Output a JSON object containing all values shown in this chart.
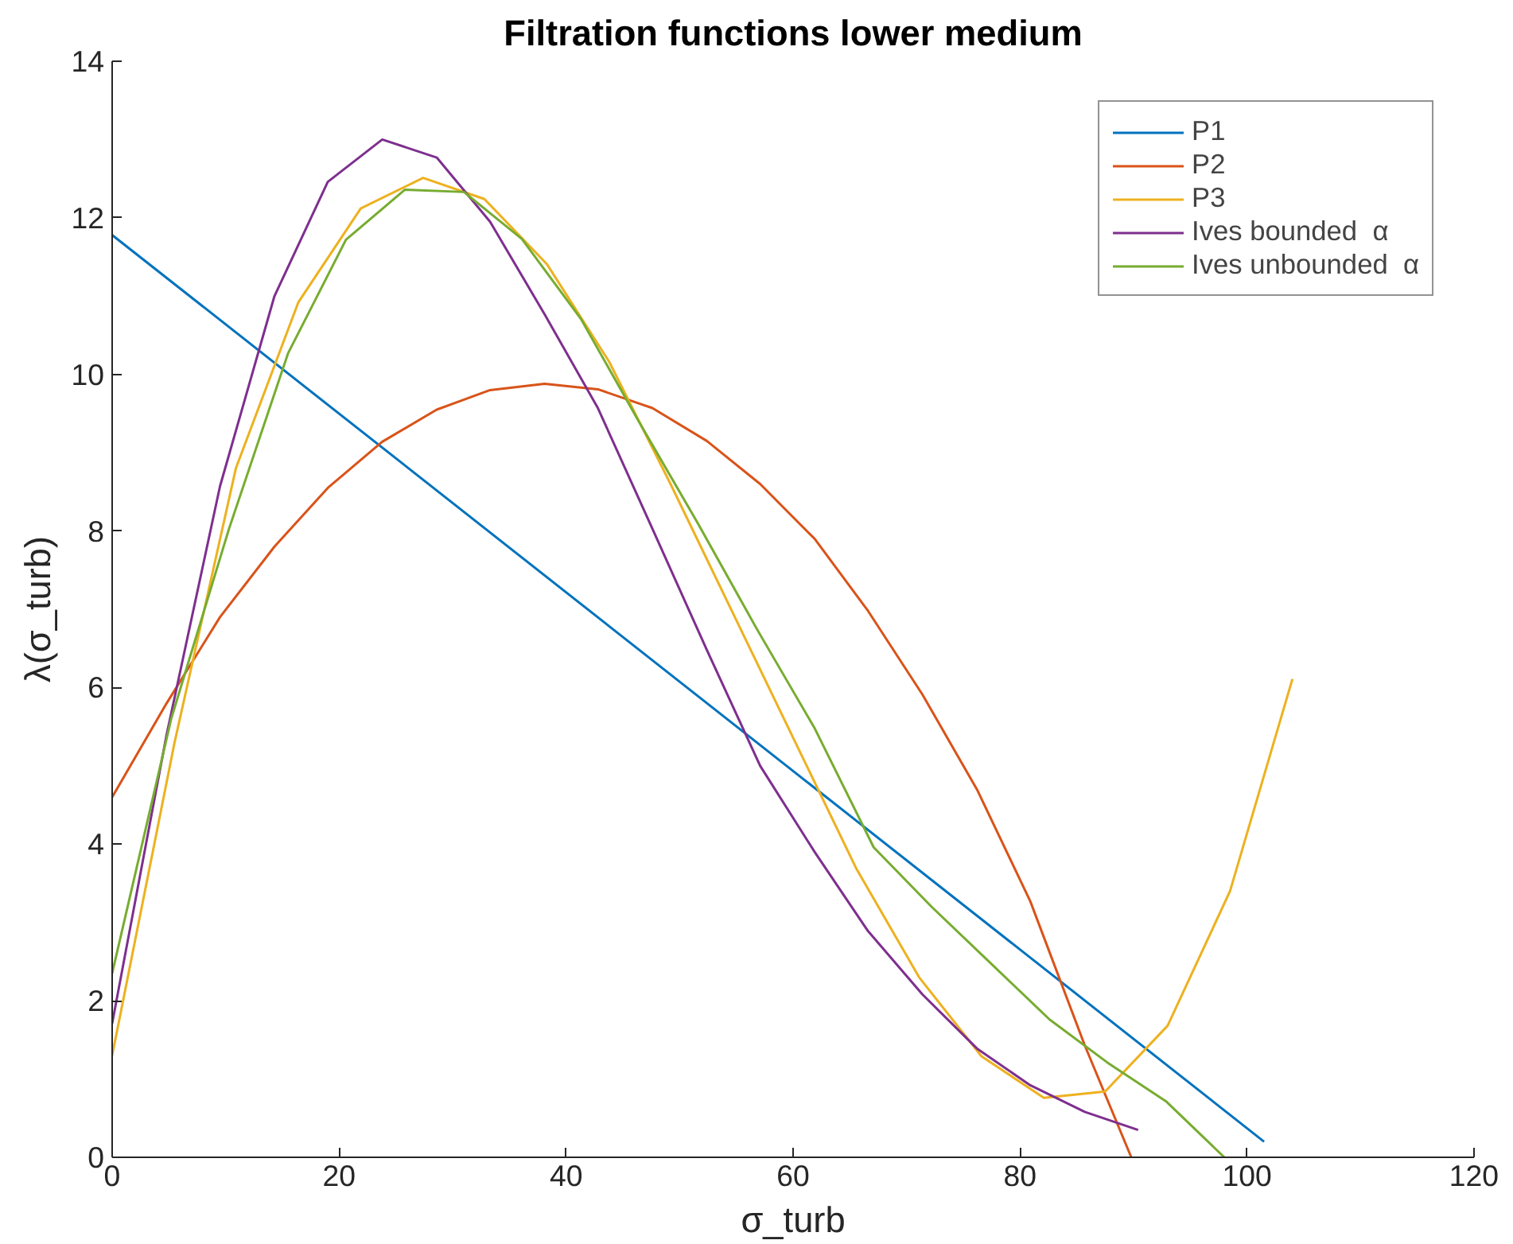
{
  "chart_data": {
    "type": "line",
    "title": "Filtration functions lower medium",
    "xlabel": "σ_turb",
    "ylabel": "λ(σ_turb)",
    "xlim": [
      0,
      120
    ],
    "xticks": [
      0,
      20,
      40,
      60,
      80,
      100,
      120
    ],
    "ylim": [
      0,
      14
    ],
    "yticks": [
      0,
      2,
      4,
      6,
      8,
      10,
      12,
      14
    ],
    "grid": false,
    "legend": "top right",
    "marker": "none",
    "line_style": "solid",
    "series": [
      {
        "name": "P1",
        "color": "#0072bd",
        "x": [
          0,
          101.5
        ],
        "values": [
          11.78,
          0.2
        ]
      },
      {
        "name": "P2",
        "color": "#d95319",
        "x": [
          0,
          4.8,
          9.5,
          14.3,
          19.0,
          23.8,
          28.6,
          33.3,
          38.1,
          42.8,
          47.6,
          52.4,
          57.1,
          61.9,
          66.6,
          71.4,
          76.2,
          80.9,
          85.7,
          89.8
        ],
        "values": [
          4.6,
          5.8,
          6.9,
          7.8,
          8.55,
          9.14,
          9.55,
          9.8,
          9.88,
          9.81,
          9.57,
          9.15,
          8.6,
          7.9,
          6.98,
          5.91,
          4.7,
          3.27,
          1.43,
          0
        ]
      },
      {
        "name": "P3",
        "color": "#edb120",
        "x": [
          0,
          5.5,
          10.9,
          16.4,
          21.9,
          27.4,
          32.8,
          38.3,
          43.8,
          49.2,
          54.7,
          60.2,
          65.6,
          71.1,
          76.6,
          82.1,
          87.5,
          93.0,
          98.5,
          104.0
        ],
        "values": [
          1.3,
          5.3,
          8.8,
          10.92,
          12.12,
          12.51,
          12.24,
          11.41,
          10.16,
          8.6,
          6.95,
          5.3,
          3.68,
          2.3,
          1.29,
          0.76,
          0.84,
          1.68,
          3.4,
          6.11
        ]
      },
      {
        "name": "Ives bounded  α",
        "color": "#7e2f8e",
        "x": [
          0,
          4.8,
          9.5,
          14.3,
          19.0,
          23.8,
          28.6,
          33.3,
          38.1,
          42.8,
          47.6,
          52.4,
          57.1,
          61.9,
          66.6,
          71.4,
          76.2,
          80.9,
          85.7,
          90.4
        ],
        "values": [
          1.71,
          5.4,
          8.57,
          11.0,
          12.46,
          13.0,
          12.77,
          11.95,
          10.77,
          9.57,
          8.03,
          6.48,
          5.0,
          3.9,
          2.89,
          2.08,
          1.39,
          0.92,
          0.58,
          0.35
        ]
      },
      {
        "name": "Ives unbounded  α",
        "color": "#77ac30",
        "x": [
          0,
          5.2,
          10.3,
          15.5,
          20.6,
          25.8,
          31.0,
          36.1,
          41.3,
          46.4,
          51.6,
          56.8,
          61.9,
          67.1,
          72.2,
          77.4,
          82.6,
          87.7,
          92.9,
          98.0
        ],
        "values": [
          2.35,
          5.6,
          8.03,
          10.27,
          11.72,
          12.36,
          12.33,
          11.73,
          10.71,
          9.4,
          8.1,
          6.75,
          5.48,
          3.96,
          3.2,
          2.48,
          1.76,
          1.21,
          0.71,
          0
        ]
      }
    ]
  }
}
